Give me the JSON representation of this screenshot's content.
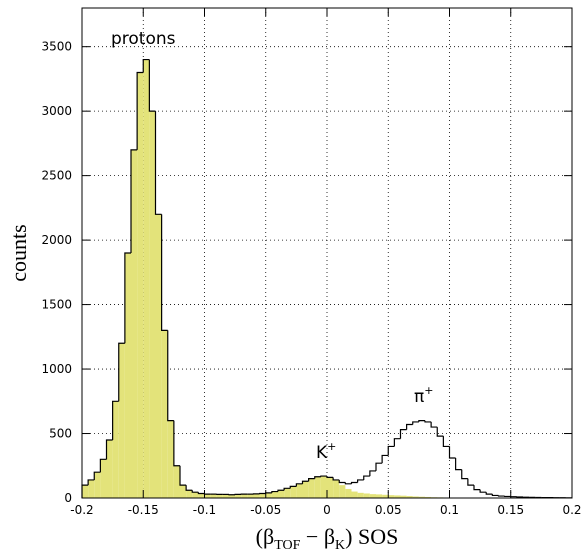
{
  "chart_data": {
    "type": "histogram",
    "xlabel": [
      "(β",
      "TOF",
      " − β",
      "K",
      ") SOS"
    ],
    "ylabel": "counts",
    "annotations": [
      {
        "text": "protons"
      },
      {
        "text": "K",
        "sup": "+"
      },
      {
        "text": "π",
        "sup": "+"
      }
    ],
    "bins": [
      -0.2,
      -0.195,
      -0.19,
      -0.185,
      -0.18,
      -0.175,
      -0.17,
      -0.165,
      -0.16,
      -0.155,
      -0.15,
      -0.145,
      -0.14,
      -0.135,
      -0.13,
      -0.125,
      -0.12,
      -0.115,
      -0.11,
      -0.105,
      -0.1,
      -0.095,
      -0.09,
      -0.085,
      -0.08,
      -0.075,
      -0.07,
      -0.065,
      -0.06,
      -0.055,
      -0.05,
      -0.045,
      -0.04,
      -0.035,
      -0.03,
      -0.025,
      -0.02,
      -0.015,
      -0.01,
      -0.005,
      0,
      0.005,
      0.01,
      0.015,
      0.02,
      0.025,
      0.03,
      0.035,
      0.04,
      0.045,
      0.05,
      0.055,
      0.06,
      0.065,
      0.07,
      0.075,
      0.08,
      0.085,
      0.09,
      0.095,
      0.1,
      0.105,
      0.11,
      0.115,
      0.12,
      0.125,
      0.13,
      0.135,
      0.14,
      0.145,
      0.15,
      0.155,
      0.16,
      0.165,
      0.17,
      0.175,
      0.18,
      0.185,
      0.19,
      0.195,
      0.2
    ],
    "series": [
      {
        "color": "#e3e37a",
        "fill": true,
        "values": [
          100,
          140,
          200,
          300,
          450,
          750,
          1200,
          1900,
          2700,
          3300,
          3400,
          3000,
          2200,
          1300,
          600,
          250,
          100,
          60,
          45,
          35,
          30,
          30,
          28,
          28,
          25,
          28,
          30,
          30,
          32,
          35,
          40,
          50,
          60,
          75,
          90,
          110,
          130,
          150,
          165,
          170,
          160,
          140,
          100,
          70,
          50,
          40,
          35,
          30,
          28,
          25,
          22,
          20,
          18,
          15,
          12,
          10,
          8,
          6,
          5,
          4,
          3,
          2,
          1,
          1,
          1,
          1,
          0,
          0,
          0,
          0,
          0,
          0,
          0,
          0,
          0,
          0,
          0,
          0,
          0,
          0
        ]
      },
      {
        "color": "#000000",
        "fill": false,
        "values": [
          100,
          140,
          200,
          300,
          450,
          750,
          1200,
          1900,
          2700,
          3300,
          3400,
          3000,
          2200,
          1300,
          600,
          250,
          100,
          60,
          45,
          35,
          30,
          30,
          28,
          28,
          25,
          28,
          30,
          30,
          32,
          35,
          40,
          50,
          60,
          75,
          90,
          110,
          130,
          150,
          165,
          170,
          160,
          140,
          120,
          110,
          120,
          140,
          170,
          210,
          270,
          330,
          400,
          460,
          530,
          570,
          590,
          600,
          590,
          550,
          480,
          400,
          310,
          220,
          150,
          100,
          65,
          45,
          30,
          20,
          15,
          12,
          10,
          8,
          6,
          5,
          4,
          3,
          3,
          2,
          2,
          1
        ]
      }
    ],
    "xlim": [
      -0.2,
      0.2
    ],
    "xticks": [
      -0.2,
      -0.15,
      -0.1,
      -0.05,
      0,
      0.05,
      0.1,
      0.15,
      0.2
    ],
    "ylim": [
      0,
      3800
    ],
    "yticks": [
      0,
      500,
      1000,
      1500,
      2000,
      2500,
      3000,
      3500
    ],
    "grid": true
  }
}
